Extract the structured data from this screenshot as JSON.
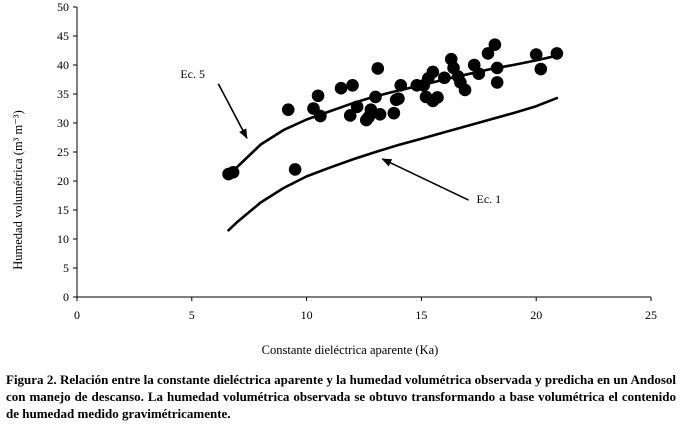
{
  "chart_data": {
    "type": "scatter",
    "xlabel": "Constante dieléctrica aparente (Ka)",
    "ylabel": "Humedad volumétrica (m³ m⁻³)",
    "xlim": [
      0,
      25
    ],
    "ylim": [
      0,
      50
    ],
    "xticks": [
      0,
      5,
      10,
      15,
      20,
      25
    ],
    "yticks": [
      0,
      5,
      10,
      15,
      20,
      25,
      30,
      35,
      40,
      45,
      50
    ],
    "grid": false,
    "series": [
      {
        "kind": "points",
        "color": "#000000",
        "points": [
          [
            6.6,
            21.2
          ],
          [
            6.8,
            21.5
          ],
          [
            9.2,
            32.3
          ],
          [
            9.5,
            22.0
          ],
          [
            10.3,
            32.5
          ],
          [
            10.5,
            34.7
          ],
          [
            10.6,
            31.2
          ],
          [
            11.5,
            36.0
          ],
          [
            11.9,
            31.3
          ],
          [
            12.0,
            36.5
          ],
          [
            12.2,
            32.8
          ],
          [
            12.6,
            30.5
          ],
          [
            12.7,
            31.0
          ],
          [
            12.8,
            32.3
          ],
          [
            13.0,
            34.5
          ],
          [
            13.1,
            39.4
          ],
          [
            13.2,
            31.5
          ],
          [
            13.8,
            31.7
          ],
          [
            13.9,
            34.0
          ],
          [
            14.0,
            34.2
          ],
          [
            14.1,
            36.5
          ],
          [
            14.8,
            36.5
          ],
          [
            15.1,
            36.5
          ],
          [
            15.2,
            34.5
          ],
          [
            15.3,
            37.7
          ],
          [
            15.5,
            38.8
          ],
          [
            15.5,
            33.8
          ],
          [
            15.7,
            34.4
          ],
          [
            16.0,
            37.8
          ],
          [
            16.3,
            41.0
          ],
          [
            16.4,
            39.5
          ],
          [
            16.6,
            38.0
          ],
          [
            16.7,
            37.0
          ],
          [
            16.9,
            35.7
          ],
          [
            17.3,
            40.0
          ],
          [
            17.5,
            38.5
          ],
          [
            17.9,
            42.0
          ],
          [
            18.2,
            43.5
          ],
          [
            18.3,
            39.5
          ],
          [
            18.3,
            37.0
          ],
          [
            20.0,
            41.8
          ],
          [
            20.2,
            39.3
          ],
          [
            20.9,
            42.0
          ]
        ]
      },
      {
        "kind": "line",
        "annotation": "Ec. 5",
        "color": "#000000",
        "points": [
          [
            6.6,
            20.8
          ],
          [
            7.0,
            22.5
          ],
          [
            8.0,
            26.3
          ],
          [
            9.0,
            28.8
          ],
          [
            10.0,
            30.6
          ],
          [
            11.0,
            32.0
          ],
          [
            12.0,
            33.4
          ],
          [
            13.0,
            34.6
          ],
          [
            14.0,
            35.6
          ],
          [
            15.0,
            36.5
          ],
          [
            16.0,
            37.5
          ],
          [
            17.0,
            38.4
          ],
          [
            18.0,
            39.3
          ],
          [
            19.0,
            40.0
          ],
          [
            20.0,
            40.8
          ],
          [
            20.9,
            41.6
          ]
        ]
      },
      {
        "kind": "line",
        "annotation": "Ec. 1",
        "color": "#000000",
        "points": [
          [
            6.6,
            11.5
          ],
          [
            7.0,
            13.0
          ],
          [
            8.0,
            16.3
          ],
          [
            9.0,
            18.8
          ],
          [
            10.0,
            20.8
          ],
          [
            11.0,
            22.3
          ],
          [
            12.0,
            23.7
          ],
          [
            13.0,
            25.0
          ],
          [
            14.0,
            26.2
          ],
          [
            15.0,
            27.3
          ],
          [
            16.0,
            28.4
          ],
          [
            17.0,
            29.5
          ],
          [
            18.0,
            30.6
          ],
          [
            19.0,
            31.7
          ],
          [
            20.0,
            32.9
          ],
          [
            20.9,
            34.3
          ]
        ]
      }
    ],
    "annotations": [
      {
        "text": "Ec. 5",
        "x": 4.5,
        "y": 37.8,
        "arrow_to": [
          7.4,
          27.4
        ]
      },
      {
        "text": "Ec. 1",
        "x": 17.4,
        "y": 16.2,
        "arrow_to": [
          13.3,
          23.8
        ]
      }
    ]
  },
  "caption": "Figura 2. Relación entre la constante dieléctrica aparente y la humedad volumétrica observada y predicha en un Andosol con manejo de descanso. La humedad volumétrica observada se obtuvo transformando a base volumétrica el contenido de humedad medido gravimétricamente."
}
